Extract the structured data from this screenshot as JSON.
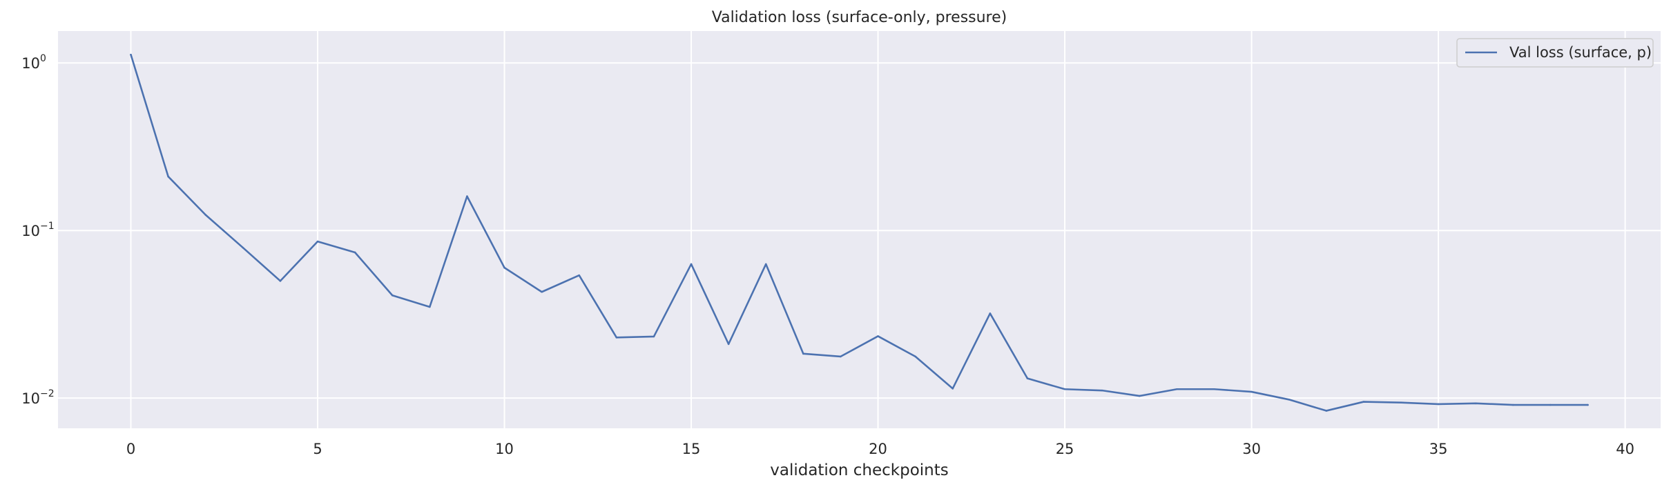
{
  "chart_data": {
    "type": "line",
    "title": "Validation loss (surface-only, pressure)",
    "xlabel": "validation checkpoints",
    "ylabel": "",
    "xlim": [
      -1.95,
      40.95
    ],
    "ylim": [
      0.0066,
      1.55
    ],
    "xscale": "linear",
    "yscale": "log",
    "x_ticks": [
      0,
      5,
      10,
      15,
      20,
      25,
      30,
      35,
      40
    ],
    "y_ticks": [
      {
        "value": 1,
        "base": "10",
        "exp": "0"
      },
      {
        "value": 0.1,
        "base": "10",
        "exp": "−1"
      },
      {
        "value": 0.01,
        "base": "10",
        "exp": "−2"
      }
    ],
    "grid": true,
    "legend_position": "top-right",
    "series": [
      {
        "name": "Val loss (surface, p)",
        "color": "#4c72b0",
        "x": [
          0,
          1,
          2,
          3,
          4,
          5,
          6,
          7,
          8,
          9,
          10,
          11,
          12,
          13,
          14,
          15,
          16,
          17,
          18,
          19,
          20,
          21,
          22,
          23,
          24,
          25,
          26,
          27,
          28,
          29,
          30,
          31,
          32,
          33,
          34,
          35,
          36,
          37,
          38,
          39
        ],
        "y": [
          1.12,
          0.21,
          0.124,
          0.079,
          0.05,
          0.086,
          0.074,
          0.041,
          0.035,
          0.16,
          0.06,
          0.043,
          0.054,
          0.023,
          0.0233,
          0.063,
          0.021,
          0.063,
          0.0184,
          0.0177,
          0.0234,
          0.0177,
          0.0114,
          0.032,
          0.0131,
          0.0113,
          0.0111,
          0.0103,
          0.0113,
          0.0113,
          0.0109,
          0.0098,
          0.0084,
          0.0095,
          0.0094,
          0.0092,
          0.0093,
          0.0091,
          0.0091,
          0.0091
        ]
      }
    ]
  },
  "colors": {
    "plot_background": "#eaeaf2",
    "grid": "#ffffff",
    "text": "#262626",
    "legend_frame": "#cccccc"
  }
}
